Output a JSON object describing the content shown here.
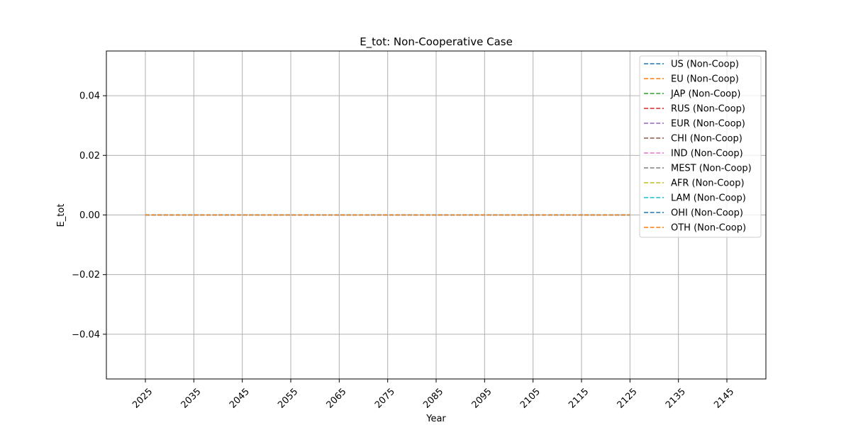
{
  "chart_data": {
    "type": "line",
    "title": "E_tot: Non-Cooperative Case",
    "xlabel": "Year",
    "ylabel": "E_tot",
    "xlim": [
      2016.95,
      2153.05
    ],
    "ylim": [
      -0.055,
      0.055
    ],
    "xticks": [
      2025,
      2035,
      2045,
      2055,
      2065,
      2075,
      2085,
      2095,
      2105,
      2115,
      2125,
      2135,
      2145
    ],
    "yticks": [
      -0.04,
      -0.02,
      0.0,
      0.02,
      0.04
    ],
    "ytick_labels": [
      "−0.04",
      "−0.02",
      "0.00",
      "0.02",
      "0.04"
    ],
    "x_rotation": 45,
    "grid": true,
    "legend_position": "top-right",
    "line_style": "dashed",
    "x": [
      2025,
      2035,
      2045,
      2055,
      2065,
      2075,
      2085,
      2095,
      2105,
      2115,
      2125
    ],
    "series": [
      {
        "name": "US (Non-Coop)",
        "color": "#1f77b4",
        "values": [
          0,
          0,
          0,
          0,
          0,
          0,
          0,
          0,
          0,
          0,
          0
        ]
      },
      {
        "name": "EU (Non-Coop)",
        "color": "#ff7f0e",
        "values": [
          0,
          0,
          0,
          0,
          0,
          0,
          0,
          0,
          0,
          0,
          0
        ]
      },
      {
        "name": "JAP (Non-Coop)",
        "color": "#2ca02c",
        "values": [
          0,
          0,
          0,
          0,
          0,
          0,
          0,
          0,
          0,
          0,
          0
        ]
      },
      {
        "name": "RUS (Non-Coop)",
        "color": "#d62728",
        "values": [
          0,
          0,
          0,
          0,
          0,
          0,
          0,
          0,
          0,
          0,
          0
        ]
      },
      {
        "name": "EUR (Non-Coop)",
        "color": "#9467bd",
        "values": [
          0,
          0,
          0,
          0,
          0,
          0,
          0,
          0,
          0,
          0,
          0
        ]
      },
      {
        "name": "CHI (Non-Coop)",
        "color": "#8c564b",
        "values": [
          0,
          0,
          0,
          0,
          0,
          0,
          0,
          0,
          0,
          0,
          0
        ]
      },
      {
        "name": "IND (Non-Coop)",
        "color": "#e377c2",
        "values": [
          0,
          0,
          0,
          0,
          0,
          0,
          0,
          0,
          0,
          0,
          0
        ]
      },
      {
        "name": "MEST (Non-Coop)",
        "color": "#7f7f7f",
        "values": [
          0,
          0,
          0,
          0,
          0,
          0,
          0,
          0,
          0,
          0,
          0
        ]
      },
      {
        "name": "AFR (Non-Coop)",
        "color": "#bcbd22",
        "values": [
          0,
          0,
          0,
          0,
          0,
          0,
          0,
          0,
          0,
          0,
          0
        ]
      },
      {
        "name": "LAM (Non-Coop)",
        "color": "#17becf",
        "values": [
          0,
          0,
          0,
          0,
          0,
          0,
          0,
          0,
          0,
          0,
          0
        ]
      },
      {
        "name": "OHI (Non-Coop)",
        "color": "#1f77b4",
        "values": [
          0,
          0,
          0,
          0,
          0,
          0,
          0,
          0,
          0,
          0,
          0
        ]
      },
      {
        "name": "OTH (Non-Coop)",
        "color": "#ff7f0e",
        "values": [
          0,
          0,
          0,
          0,
          0,
          0,
          0,
          0,
          0,
          0,
          0
        ]
      }
    ]
  }
}
